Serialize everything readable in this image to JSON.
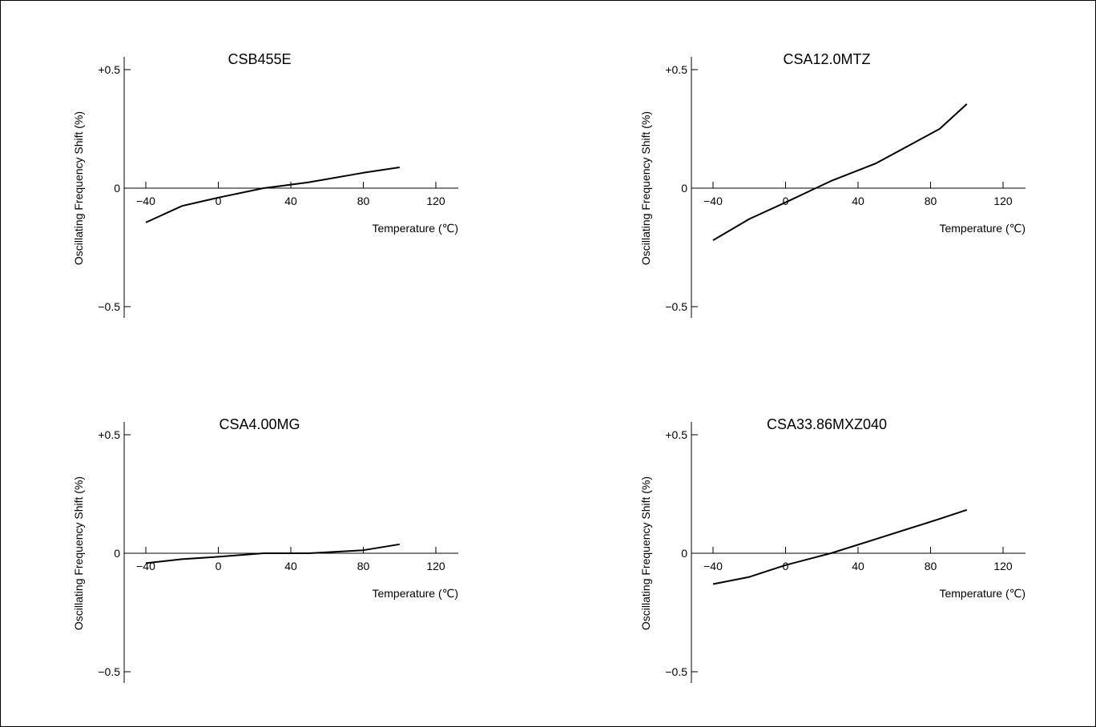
{
  "colors": {
    "line": "#000000",
    "background": "#ffffff"
  },
  "chart_data": [
    {
      "type": "line",
      "title": "CSB455E",
      "xlabel": "Temperature (℃)",
      "ylabel": "Oscillating Frequency Shift (%)",
      "xticks": [
        "−40",
        "0",
        "40",
        "80",
        "120"
      ],
      "yticks": [
        "+0.5",
        "0",
        "−0.5"
      ],
      "xlim": [
        -40,
        120
      ],
      "ylim": [
        -0.5,
        0.5
      ],
      "grid": false,
      "x": [
        -40,
        -20,
        0,
        25,
        40,
        50,
        80,
        100
      ],
      "y": [
        -0.145,
        -0.075,
        -0.04,
        0.0,
        0.015,
        0.025,
        0.065,
        0.088
      ]
    },
    {
      "type": "line",
      "title": "CSA12.0MTZ",
      "xlabel": "Temperature (℃)",
      "ylabel": "Oscillating Frequency Shift (%)",
      "xticks": [
        "−40",
        "0",
        "40",
        "80",
        "120"
      ],
      "yticks": [
        "+0.5",
        "0",
        "−0.5"
      ],
      "xlim": [
        -40,
        120
      ],
      "ylim": [
        -0.5,
        0.5
      ],
      "grid": false,
      "x": [
        -40,
        -20,
        0,
        25,
        50,
        85,
        100
      ],
      "y": [
        -0.22,
        -0.13,
        -0.06,
        0.03,
        0.105,
        0.25,
        0.355
      ]
    },
    {
      "type": "line",
      "title": "CSA4.00MG",
      "xlabel": "Temperature (℃)",
      "ylabel": "Oscillating Frequency Shift (%)",
      "xticks": [
        "−40",
        "0",
        "40",
        "80",
        "120"
      ],
      "yticks": [
        "+0.5",
        "0",
        "−0.5"
      ],
      "xlim": [
        -40,
        120
      ],
      "ylim": [
        -0.5,
        0.5
      ],
      "grid": false,
      "x": [
        -40,
        -20,
        0,
        25,
        50,
        80,
        100
      ],
      "y": [
        -0.042,
        -0.025,
        -0.015,
        0.0,
        0.0,
        0.013,
        0.038
      ]
    },
    {
      "type": "line",
      "title": "CSA33.86MXZ040",
      "xlabel": "Temperature (℃)",
      "ylabel": "Oscillating Frequency Shift (%)",
      "xticks": [
        "−40",
        "0",
        "40",
        "80",
        "120"
      ],
      "yticks": [
        "+0.5",
        "0",
        "−0.5"
      ],
      "xlim": [
        -40,
        120
      ],
      "ylim": [
        -0.5,
        0.5
      ],
      "grid": false,
      "x": [
        -40,
        -20,
        0,
        25,
        50,
        85,
        100
      ],
      "y": [
        -0.13,
        -0.1,
        -0.05,
        0.0,
        0.06,
        0.145,
        0.183
      ]
    }
  ]
}
